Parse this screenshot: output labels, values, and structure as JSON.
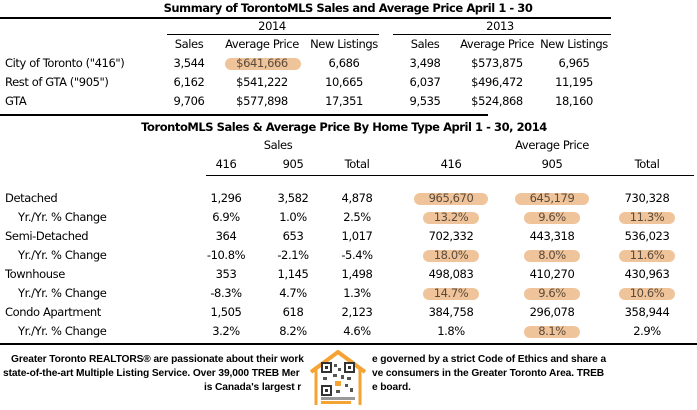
{
  "summary": {
    "title": "Summary of TorontoMLS Sales and Average Price April 1 - 30",
    "years": [
      "2014",
      "2013"
    ],
    "columns": [
      "Sales",
      "Average Price",
      "New Listings",
      "Sales",
      "Average Price",
      "New Listings"
    ],
    "rows": [
      {
        "label": "City of Toronto (\"416\")",
        "values": [
          "3,544",
          "$641,666",
          "6,686",
          "3,498",
          "$573,875",
          "6,965"
        ]
      },
      {
        "label": "Rest of GTA (\"905\")",
        "values": [
          "6,162",
          "$541,222",
          "10,665",
          "6,037",
          "$496,472",
          "11,195"
        ]
      },
      {
        "label": "GTA",
        "values": [
          "9,706",
          "$577,898",
          "17,351",
          "9,535",
          "$524,868",
          "18,160"
        ]
      }
    ]
  },
  "by_type": {
    "title": "TorontoMLS Sales & Average Price  By Home Type April 1 - 30, 2014",
    "groups": [
      "Sales",
      "Average Price"
    ],
    "columns": [
      "416",
      "905",
      "Total",
      "416",
      "905",
      "Total"
    ],
    "rows": [
      {
        "label": "Detached",
        "values": [
          "1,296",
          "3,582",
          "4,878",
          "965,670",
          "645,179",
          "730,328"
        ]
      },
      {
        "label": "Yr./Yr. % Change",
        "values": [
          "6.9%",
          "1.0%",
          "2.5%",
          "13.2%",
          "9.6%",
          "11.3%"
        ]
      },
      {
        "label": "Semi-Detached",
        "values": [
          "364",
          "653",
          "1,017",
          "702,332",
          "443,318",
          "536,023"
        ]
      },
      {
        "label": "Yr./Yr. % Change",
        "values": [
          "-10.8%",
          "-2.1%",
          "-5.4%",
          "18.0%",
          "8.0%",
          "11.6%"
        ]
      },
      {
        "label": "Townhouse",
        "values": [
          "353",
          "1,145",
          "1,498",
          "498,083",
          "410,270",
          "430,963"
        ]
      },
      {
        "label": "Yr./Yr. % Change",
        "values": [
          "-8.3%",
          "4.7%",
          "1.3%",
          "14.7%",
          "9.6%",
          "10.6%"
        ]
      },
      {
        "label": "Condo Apartment",
        "values": [
          "1,505",
          "618",
          "2,123",
          "384,758",
          "296,078",
          "358,944"
        ]
      },
      {
        "label": "Yr./Yr. % Change",
        "values": [
          "3.2%",
          "8.2%",
          "4.6%",
          "1.8%",
          "8.1%",
          "2.9%"
        ]
      }
    ],
    "highlighted_cells": [
      "0.3",
      "0.4",
      "1.3",
      "1.4",
      "1.5",
      "3.3",
      "3.4",
      "3.5",
      "5.3",
      "5.4",
      "5.5",
      "7.4"
    ]
  },
  "footer": {
    "line1": "Greater Toronto REALTORS® are passionate about their work and are governed by a strict Code of Ethics and share a",
    "line2": "state-of-the-art Multiple Listing Service. Over 39,000 TREB Members serve consumers in the Greater Toronto Area.  TREB",
    "line3": "is Canada's largest real estate board.",
    "line1a": "Greater Toronto REALTORS® are passionate about their work",
    "line1b": "e governed by a strict Code of Ethics and share a",
    "line2a": "state-of-the-art Multiple Listing Service. Over 39,000 TREB Mer",
    "line2b": "ve consumers in the Greater Toronto Area.  TREB",
    "line3a": "is Canada's largest r",
    "line3b": "e board."
  },
  "colors": {
    "highlight": "#f0c49a",
    "rule": "#000000"
  }
}
